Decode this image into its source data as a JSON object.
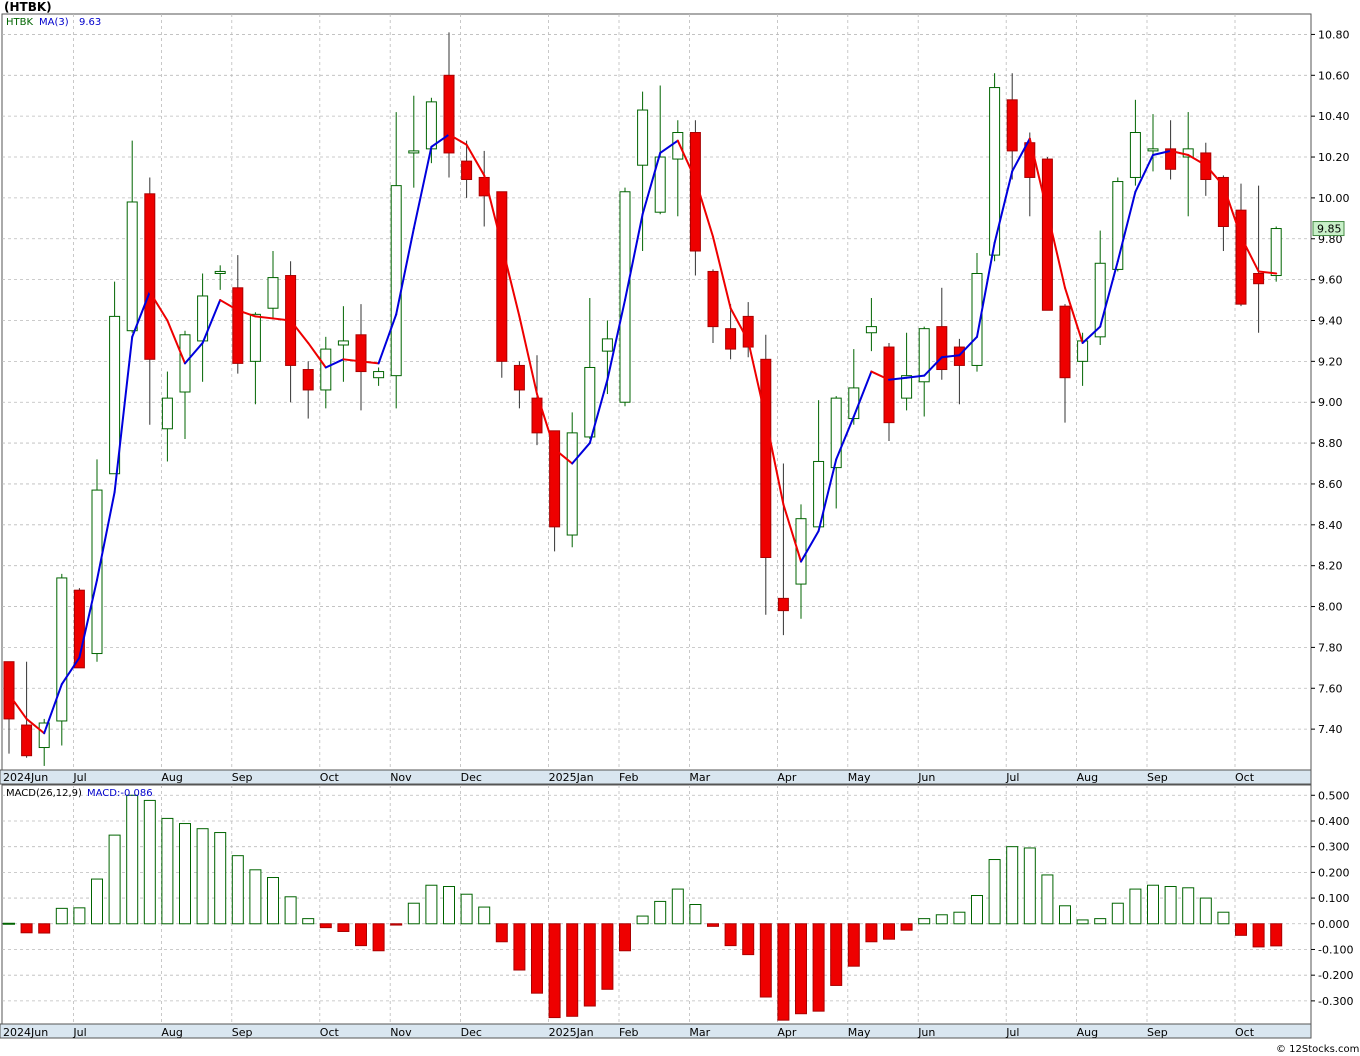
{
  "header": {
    "title": "(HTBK)"
  },
  "footer": {
    "credit": "© 12Stocks.com"
  },
  "colors": {
    "up": "#ffffff",
    "up_stroke": "#006400",
    "down": "#ee0000",
    "ma_up": "#0000dd",
    "ma_down": "#ee0000",
    "grid": "#bbbbbb",
    "axis_band": "#d9e6f0",
    "last_badge": "#c8f0c8"
  },
  "chart_data": [
    {
      "type": "candlestick",
      "legend": {
        "symbol": "HTBK",
        "indicator": "MA(3)",
        "value": "9.63"
      },
      "last_price_label": "9.85",
      "ylim": [
        7.2,
        10.9
      ],
      "yticks": [
        "7.40",
        "7.60",
        "7.80",
        "8.00",
        "8.20",
        "8.40",
        "8.60",
        "8.80",
        "9.00",
        "9.20",
        "9.40",
        "9.60",
        "9.80",
        "10.00",
        "10.20",
        "10.40",
        "10.60",
        "10.80"
      ],
      "xlabels": [
        {
          "label": "2024Jun",
          "index": 0
        },
        {
          "label": "Jul",
          "index": 4
        },
        {
          "label": "Aug",
          "index": 9
        },
        {
          "label": "Sep",
          "index": 13
        },
        {
          "label": "Oct",
          "index": 18
        },
        {
          "label": "Nov",
          "index": 22
        },
        {
          "label": "Dec",
          "index": 26
        },
        {
          "label": "2025Jan",
          "index": 31
        },
        {
          "label": "Feb",
          "index": 35
        },
        {
          "label": "Mar",
          "index": 39
        },
        {
          "label": "Apr",
          "index": 44
        },
        {
          "label": "May",
          "index": 48
        },
        {
          "label": "Jun",
          "index": 52
        },
        {
          "label": "Jul",
          "index": 57
        },
        {
          "label": "Aug",
          "index": 61
        },
        {
          "label": "Sep",
          "index": 65
        },
        {
          "label": "Oct",
          "index": 70
        }
      ],
      "candles": [
        {
          "o": 7.73,
          "h": 7.73,
          "l": 7.28,
          "c": 7.45
        },
        {
          "o": 7.42,
          "h": 7.73,
          "l": 7.26,
          "c": 7.27
        },
        {
          "o": 7.31,
          "h": 7.45,
          "l": 7.22,
          "c": 7.43
        },
        {
          "o": 7.44,
          "h": 8.16,
          "l": 7.32,
          "c": 8.14
        },
        {
          "o": 8.08,
          "h": 8.09,
          "l": 7.72,
          "c": 7.7
        },
        {
          "o": 7.77,
          "h": 8.72,
          "l": 7.73,
          "c": 8.57
        },
        {
          "o": 8.65,
          "h": 9.59,
          "l": 8.65,
          "c": 9.42
        },
        {
          "o": 9.35,
          "h": 10.28,
          "l": 9.34,
          "c": 9.98
        },
        {
          "o": 10.02,
          "h": 10.1,
          "l": 8.89,
          "c": 9.21
        },
        {
          "o": 8.87,
          "h": 9.15,
          "l": 8.71,
          "c": 9.02
        },
        {
          "o": 9.05,
          "h": 9.35,
          "l": 8.82,
          "c": 9.33
        },
        {
          "o": 9.3,
          "h": 9.63,
          "l": 9.1,
          "c": 9.52
        },
        {
          "o": 9.63,
          "h": 9.67,
          "l": 9.55,
          "c": 9.64
        },
        {
          "o": 9.56,
          "h": 9.72,
          "l": 9.14,
          "c": 9.19
        },
        {
          "o": 9.2,
          "h": 9.44,
          "l": 8.99,
          "c": 9.43
        },
        {
          "o": 9.46,
          "h": 9.74,
          "l": 9.41,
          "c": 9.61
        },
        {
          "o": 9.62,
          "h": 9.69,
          "l": 9.0,
          "c": 9.18
        },
        {
          "o": 9.16,
          "h": 9.2,
          "l": 8.92,
          "c": 9.06
        },
        {
          "o": 9.06,
          "h": 9.32,
          "l": 8.97,
          "c": 9.26
        },
        {
          "o": 9.28,
          "h": 9.47,
          "l": 9.1,
          "c": 9.3
        },
        {
          "o": 9.33,
          "h": 9.48,
          "l": 8.96,
          "c": 9.15
        },
        {
          "o": 9.12,
          "h": 9.17,
          "l": 9.08,
          "c": 9.15
        },
        {
          "o": 9.13,
          "h": 10.42,
          "l": 8.97,
          "c": 10.06
        },
        {
          "o": 10.22,
          "h": 10.5,
          "l": 10.05,
          "c": 10.23
        },
        {
          "o": 10.24,
          "h": 10.49,
          "l": 10.17,
          "c": 10.47
        },
        {
          "o": 10.6,
          "h": 10.81,
          "l": 10.1,
          "c": 10.22
        },
        {
          "o": 10.18,
          "h": 10.28,
          "l": 10.0,
          "c": 10.09
        },
        {
          "o": 10.1,
          "h": 10.23,
          "l": 9.86,
          "c": 10.01
        },
        {
          "o": 10.03,
          "h": 10.02,
          "l": 9.12,
          "c": 9.2
        },
        {
          "o": 9.18,
          "h": 9.2,
          "l": 8.97,
          "c": 9.06
        },
        {
          "o": 9.02,
          "h": 9.23,
          "l": 8.79,
          "c": 8.85
        },
        {
          "o": 8.86,
          "h": 8.86,
          "l": 8.27,
          "c": 8.39
        },
        {
          "o": 8.35,
          "h": 8.95,
          "l": 8.29,
          "c": 8.85
        },
        {
          "o": 8.83,
          "h": 9.51,
          "l": 8.82,
          "c": 9.17
        },
        {
          "o": 9.25,
          "h": 9.4,
          "l": 9.04,
          "c": 9.31
        },
        {
          "o": 9.0,
          "h": 10.05,
          "l": 8.98,
          "c": 10.03
        },
        {
          "o": 10.16,
          "h": 10.52,
          "l": 9.74,
          "c": 10.43
        },
        {
          "o": 9.93,
          "h": 10.55,
          "l": 9.92,
          "c": 10.2
        },
        {
          "o": 10.19,
          "h": 10.38,
          "l": 9.91,
          "c": 10.32
        },
        {
          "o": 10.32,
          "h": 10.38,
          "l": 9.62,
          "c": 9.74
        },
        {
          "o": 9.64,
          "h": 9.65,
          "l": 9.29,
          "c": 9.37
        },
        {
          "o": 9.36,
          "h": 9.48,
          "l": 9.21,
          "c": 9.26
        },
        {
          "o": 9.42,
          "h": 9.49,
          "l": 9.22,
          "c": 9.27
        },
        {
          "o": 9.21,
          "h": 9.33,
          "l": 7.96,
          "c": 8.24
        },
        {
          "o": 8.04,
          "h": 8.7,
          "l": 7.86,
          "c": 7.98
        },
        {
          "o": 8.11,
          "h": 8.5,
          "l": 7.94,
          "c": 8.43
        },
        {
          "o": 8.39,
          "h": 9.01,
          "l": 8.39,
          "c": 8.71
        },
        {
          "o": 8.68,
          "h": 9.03,
          "l": 8.48,
          "c": 9.02
        },
        {
          "o": 8.92,
          "h": 9.26,
          "l": 8.89,
          "c": 9.07
        },
        {
          "o": 9.34,
          "h": 9.51,
          "l": 9.25,
          "c": 9.37
        },
        {
          "o": 9.27,
          "h": 9.29,
          "l": 8.81,
          "c": 8.9
        },
        {
          "o": 9.02,
          "h": 9.34,
          "l": 8.96,
          "c": 9.13
        },
        {
          "o": 9.1,
          "h": 9.37,
          "l": 8.93,
          "c": 9.36
        },
        {
          "o": 9.37,
          "h": 9.56,
          "l": 9.11,
          "c": 9.16
        },
        {
          "o": 9.27,
          "h": 9.31,
          "l": 8.99,
          "c": 9.18
        },
        {
          "o": 9.18,
          "h": 9.73,
          "l": 9.15,
          "c": 9.63
        },
        {
          "o": 9.72,
          "h": 10.61,
          "l": 9.69,
          "c": 10.54
        },
        {
          "o": 10.48,
          "h": 10.61,
          "l": 10.09,
          "c": 10.23
        },
        {
          "o": 10.27,
          "h": 10.32,
          "l": 9.91,
          "c": 10.1
        },
        {
          "o": 10.19,
          "h": 10.2,
          "l": 9.48,
          "c": 9.45
        },
        {
          "o": 9.47,
          "h": 9.48,
          "l": 8.9,
          "c": 9.12
        },
        {
          "o": 9.2,
          "h": 9.34,
          "l": 9.08,
          "c": 9.3
        },
        {
          "o": 9.32,
          "h": 9.84,
          "l": 9.28,
          "c": 9.68
        },
        {
          "o": 9.65,
          "h": 10.1,
          "l": 9.64,
          "c": 10.08
        },
        {
          "o": 10.1,
          "h": 10.48,
          "l": 10.06,
          "c": 10.32
        },
        {
          "o": 10.23,
          "h": 10.41,
          "l": 10.13,
          "c": 10.24
        },
        {
          "o": 10.24,
          "h": 10.38,
          "l": 10.09,
          "c": 10.14
        },
        {
          "o": 10.2,
          "h": 10.42,
          "l": 9.91,
          "c": 10.24
        },
        {
          "o": 10.22,
          "h": 10.27,
          "l": 10.01,
          "c": 10.09
        },
        {
          "o": 10.1,
          "h": 10.11,
          "l": 9.74,
          "c": 9.86
        },
        {
          "o": 9.94,
          "h": 10.07,
          "l": 9.47,
          "c": 9.48
        },
        {
          "o": 9.63,
          "h": 10.06,
          "l": 9.34,
          "c": 9.58
        },
        {
          "o": 9.62,
          "h": 9.86,
          "l": 9.59,
          "c": 9.85
        }
      ],
      "ma": [
        7.57,
        7.45,
        7.38,
        7.62,
        7.75,
        8.13,
        8.56,
        9.32,
        9.54,
        9.4,
        9.19,
        9.29,
        9.5,
        9.45,
        9.42,
        9.41,
        9.4,
        9.29,
        9.17,
        9.21,
        9.2,
        9.19,
        9.43,
        9.85,
        10.25,
        10.31,
        10.26,
        10.11,
        9.77,
        9.42,
        9.04,
        8.77,
        8.7,
        8.8,
        9.11,
        9.5,
        9.92,
        10.22,
        10.28,
        10.09,
        9.81,
        9.46,
        9.3,
        8.92,
        8.5,
        8.22,
        8.37,
        8.72,
        8.93,
        9.15,
        9.11,
        9.12,
        9.13,
        9.22,
        9.23,
        9.32,
        9.78,
        10.13,
        10.29,
        9.93,
        9.56,
        9.29,
        9.37,
        9.69,
        10.03,
        10.21,
        10.23,
        10.21,
        10.16,
        10.06,
        9.81,
        9.64,
        9.63
      ]
    },
    {
      "type": "bar",
      "legend": {
        "indicator": "MACD(26,12,9)",
        "value": "MACD:-0.086"
      },
      "ylim": [
        -0.39,
        0.54
      ],
      "yticks": [
        "-0.300",
        "-0.200",
        "-0.100",
        "0.000",
        "0.100",
        "0.200",
        "0.300",
        "0.400",
        "0.500"
      ],
      "values": [
        0.002,
        -0.035,
        -0.036,
        0.06,
        0.062,
        0.174,
        0.345,
        0.5,
        0.48,
        0.41,
        0.39,
        0.37,
        0.355,
        0.265,
        0.21,
        0.18,
        0.105,
        0.02,
        -0.015,
        -0.03,
        -0.085,
        -0.105,
        -0.005,
        0.08,
        0.15,
        0.145,
        0.115,
        0.065,
        -0.07,
        -0.18,
        -0.27,
        -0.365,
        -0.36,
        -0.32,
        -0.255,
        -0.105,
        0.03,
        0.087,
        0.135,
        0.075,
        -0.01,
        -0.085,
        -0.12,
        -0.285,
        -0.375,
        -0.35,
        -0.34,
        -0.24,
        -0.165,
        -0.07,
        -0.06,
        -0.025,
        0.02,
        0.035,
        0.045,
        0.11,
        0.25,
        0.3,
        0.295,
        0.19,
        0.07,
        0.015,
        0.02,
        0.08,
        0.135,
        0.15,
        0.145,
        0.14,
        0.1,
        0.045,
        -0.045,
        -0.09,
        -0.086
      ]
    }
  ]
}
